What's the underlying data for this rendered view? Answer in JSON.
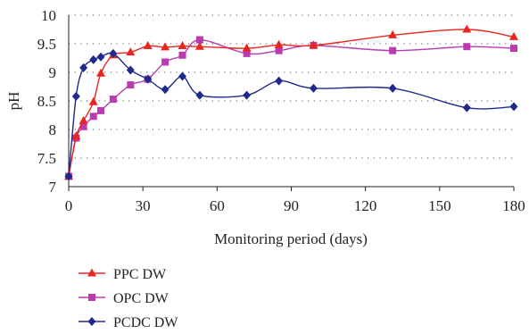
{
  "chart_data": {
    "type": "line",
    "title": "",
    "xlabel": "Monitoring period (days)",
    "ylabel": "pH",
    "xlim": [
      0,
      180
    ],
    "ylim": [
      7,
      10
    ],
    "xticks": [
      0,
      30,
      60,
      90,
      120,
      150,
      180
    ],
    "yticks": [
      7,
      7.5,
      8,
      8.5,
      9,
      9.5,
      10
    ],
    "xtick_labels": [
      "0",
      "30",
      "60",
      "90",
      "120",
      "150",
      "180"
    ],
    "ytick_labels": [
      "7",
      "7.5",
      "8",
      "8.5",
      "9",
      "9.5",
      "10"
    ],
    "grid": "horizontal dotted",
    "legend_position": "bottom-left",
    "series": [
      {
        "name": "PPC DW",
        "color": "#e8261f",
        "marker": "triangle",
        "x": [
          0,
          3,
          6,
          10,
          13,
          18,
          25,
          32,
          39,
          46,
          53,
          72,
          85,
          99,
          131,
          161,
          180
        ],
        "y": [
          7.18,
          7.88,
          8.15,
          8.48,
          8.98,
          9.3,
          9.35,
          9.46,
          9.44,
          9.46,
          9.45,
          9.42,
          9.48,
          9.47,
          9.65,
          9.75,
          9.62
        ]
      },
      {
        "name": "OPC DW",
        "color": "#b83bb0",
        "marker": "square",
        "x": [
          0,
          3,
          6,
          10,
          13,
          18,
          25,
          32,
          39,
          46,
          53,
          72,
          85,
          99,
          131,
          161,
          180
        ],
        "y": [
          7.18,
          7.85,
          8.05,
          8.23,
          8.33,
          8.53,
          8.78,
          8.88,
          9.18,
          9.3,
          9.57,
          9.33,
          9.38,
          9.47,
          9.38,
          9.45,
          9.42
        ]
      },
      {
        "name": "PCDC DW",
        "color": "#1f2a8a",
        "marker": "diamond",
        "x": [
          0,
          3,
          6,
          10,
          13,
          18,
          25,
          32,
          39,
          46,
          53,
          72,
          85,
          99,
          131,
          161,
          180
        ],
        "y": [
          7.18,
          8.58,
          9.08,
          9.22,
          9.27,
          9.33,
          9.04,
          8.88,
          8.7,
          8.93,
          8.6,
          8.6,
          8.85,
          8.72,
          8.72,
          8.38,
          8.4
        ]
      }
    ]
  }
}
